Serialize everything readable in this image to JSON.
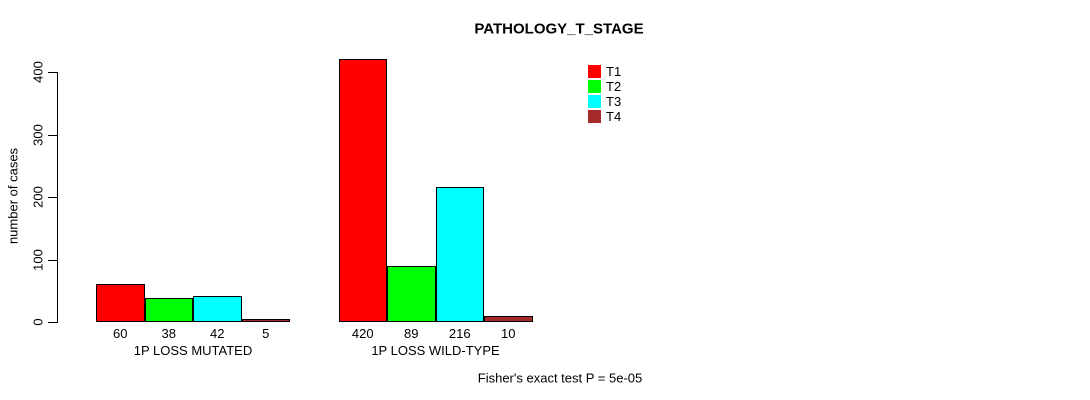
{
  "chart_data": {
    "type": "bar",
    "title": "PATHOLOGY_T_STAGE",
    "ylabel": "number of cases",
    "xlabel": "",
    "ylim": [
      0,
      400
    ],
    "yticks": [
      0,
      100,
      200,
      300,
      400
    ],
    "categories": [
      "1P LOSS MUTATED",
      "1P LOSS WILD-TYPE"
    ],
    "series": [
      {
        "name": "T1",
        "color": "#ff0000",
        "values": [
          60,
          420
        ]
      },
      {
        "name": "T2",
        "color": "#00ff00",
        "values": [
          38,
          89
        ]
      },
      {
        "name": "T3",
        "color": "#00ffff",
        "values": [
          42,
          216
        ]
      },
      {
        "name": "T4",
        "color": "#a52a2a",
        "values": [
          5,
          10
        ]
      }
    ],
    "value_labels_shown": true,
    "grid": false,
    "legend_position": "top-right",
    "bar_border_color": "#000000",
    "background_color": "#ffffff",
    "annotation": "Fisher's exact test P = 5e-05"
  }
}
